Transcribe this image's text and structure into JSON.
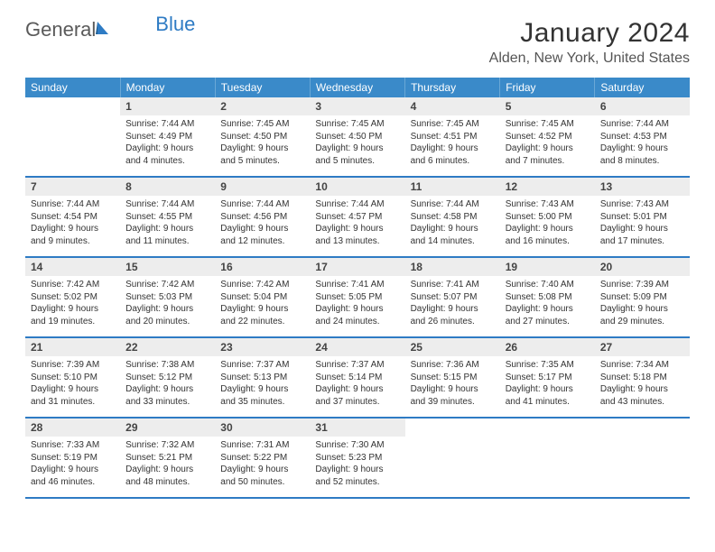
{
  "brand": {
    "text1": "General",
    "text2": "Blue"
  },
  "title": "January 2024",
  "location": "Alden, New York, United States",
  "colors": {
    "header_bg": "#3a8ac9",
    "week_divider": "#2e7bc4",
    "daynum_bg": "#ededed",
    "text": "#333333"
  },
  "dows": [
    "Sunday",
    "Monday",
    "Tuesday",
    "Wednesday",
    "Thursday",
    "Friday",
    "Saturday"
  ],
  "weeks": [
    [
      {
        "num": "",
        "l1": "",
        "l2": "",
        "l3": "",
        "l4": ""
      },
      {
        "num": "1",
        "l1": "Sunrise: 7:44 AM",
        "l2": "Sunset: 4:49 PM",
        "l3": "Daylight: 9 hours",
        "l4": "and 4 minutes."
      },
      {
        "num": "2",
        "l1": "Sunrise: 7:45 AM",
        "l2": "Sunset: 4:50 PM",
        "l3": "Daylight: 9 hours",
        "l4": "and 5 minutes."
      },
      {
        "num": "3",
        "l1": "Sunrise: 7:45 AM",
        "l2": "Sunset: 4:50 PM",
        "l3": "Daylight: 9 hours",
        "l4": "and 5 minutes."
      },
      {
        "num": "4",
        "l1": "Sunrise: 7:45 AM",
        "l2": "Sunset: 4:51 PM",
        "l3": "Daylight: 9 hours",
        "l4": "and 6 minutes."
      },
      {
        "num": "5",
        "l1": "Sunrise: 7:45 AM",
        "l2": "Sunset: 4:52 PM",
        "l3": "Daylight: 9 hours",
        "l4": "and 7 minutes."
      },
      {
        "num": "6",
        "l1": "Sunrise: 7:44 AM",
        "l2": "Sunset: 4:53 PM",
        "l3": "Daylight: 9 hours",
        "l4": "and 8 minutes."
      }
    ],
    [
      {
        "num": "7",
        "l1": "Sunrise: 7:44 AM",
        "l2": "Sunset: 4:54 PM",
        "l3": "Daylight: 9 hours",
        "l4": "and 9 minutes."
      },
      {
        "num": "8",
        "l1": "Sunrise: 7:44 AM",
        "l2": "Sunset: 4:55 PM",
        "l3": "Daylight: 9 hours",
        "l4": "and 11 minutes."
      },
      {
        "num": "9",
        "l1": "Sunrise: 7:44 AM",
        "l2": "Sunset: 4:56 PM",
        "l3": "Daylight: 9 hours",
        "l4": "and 12 minutes."
      },
      {
        "num": "10",
        "l1": "Sunrise: 7:44 AM",
        "l2": "Sunset: 4:57 PM",
        "l3": "Daylight: 9 hours",
        "l4": "and 13 minutes."
      },
      {
        "num": "11",
        "l1": "Sunrise: 7:44 AM",
        "l2": "Sunset: 4:58 PM",
        "l3": "Daylight: 9 hours",
        "l4": "and 14 minutes."
      },
      {
        "num": "12",
        "l1": "Sunrise: 7:43 AM",
        "l2": "Sunset: 5:00 PM",
        "l3": "Daylight: 9 hours",
        "l4": "and 16 minutes."
      },
      {
        "num": "13",
        "l1": "Sunrise: 7:43 AM",
        "l2": "Sunset: 5:01 PM",
        "l3": "Daylight: 9 hours",
        "l4": "and 17 minutes."
      }
    ],
    [
      {
        "num": "14",
        "l1": "Sunrise: 7:42 AM",
        "l2": "Sunset: 5:02 PM",
        "l3": "Daylight: 9 hours",
        "l4": "and 19 minutes."
      },
      {
        "num": "15",
        "l1": "Sunrise: 7:42 AM",
        "l2": "Sunset: 5:03 PM",
        "l3": "Daylight: 9 hours",
        "l4": "and 20 minutes."
      },
      {
        "num": "16",
        "l1": "Sunrise: 7:42 AM",
        "l2": "Sunset: 5:04 PM",
        "l3": "Daylight: 9 hours",
        "l4": "and 22 minutes."
      },
      {
        "num": "17",
        "l1": "Sunrise: 7:41 AM",
        "l2": "Sunset: 5:05 PM",
        "l3": "Daylight: 9 hours",
        "l4": "and 24 minutes."
      },
      {
        "num": "18",
        "l1": "Sunrise: 7:41 AM",
        "l2": "Sunset: 5:07 PM",
        "l3": "Daylight: 9 hours",
        "l4": "and 26 minutes."
      },
      {
        "num": "19",
        "l1": "Sunrise: 7:40 AM",
        "l2": "Sunset: 5:08 PM",
        "l3": "Daylight: 9 hours",
        "l4": "and 27 minutes."
      },
      {
        "num": "20",
        "l1": "Sunrise: 7:39 AM",
        "l2": "Sunset: 5:09 PM",
        "l3": "Daylight: 9 hours",
        "l4": "and 29 minutes."
      }
    ],
    [
      {
        "num": "21",
        "l1": "Sunrise: 7:39 AM",
        "l2": "Sunset: 5:10 PM",
        "l3": "Daylight: 9 hours",
        "l4": "and 31 minutes."
      },
      {
        "num": "22",
        "l1": "Sunrise: 7:38 AM",
        "l2": "Sunset: 5:12 PM",
        "l3": "Daylight: 9 hours",
        "l4": "and 33 minutes."
      },
      {
        "num": "23",
        "l1": "Sunrise: 7:37 AM",
        "l2": "Sunset: 5:13 PM",
        "l3": "Daylight: 9 hours",
        "l4": "and 35 minutes."
      },
      {
        "num": "24",
        "l1": "Sunrise: 7:37 AM",
        "l2": "Sunset: 5:14 PM",
        "l3": "Daylight: 9 hours",
        "l4": "and 37 minutes."
      },
      {
        "num": "25",
        "l1": "Sunrise: 7:36 AM",
        "l2": "Sunset: 5:15 PM",
        "l3": "Daylight: 9 hours",
        "l4": "and 39 minutes."
      },
      {
        "num": "26",
        "l1": "Sunrise: 7:35 AM",
        "l2": "Sunset: 5:17 PM",
        "l3": "Daylight: 9 hours",
        "l4": "and 41 minutes."
      },
      {
        "num": "27",
        "l1": "Sunrise: 7:34 AM",
        "l2": "Sunset: 5:18 PM",
        "l3": "Daylight: 9 hours",
        "l4": "and 43 minutes."
      }
    ],
    [
      {
        "num": "28",
        "l1": "Sunrise: 7:33 AM",
        "l2": "Sunset: 5:19 PM",
        "l3": "Daylight: 9 hours",
        "l4": "and 46 minutes."
      },
      {
        "num": "29",
        "l1": "Sunrise: 7:32 AM",
        "l2": "Sunset: 5:21 PM",
        "l3": "Daylight: 9 hours",
        "l4": "and 48 minutes."
      },
      {
        "num": "30",
        "l1": "Sunrise: 7:31 AM",
        "l2": "Sunset: 5:22 PM",
        "l3": "Daylight: 9 hours",
        "l4": "and 50 minutes."
      },
      {
        "num": "31",
        "l1": "Sunrise: 7:30 AM",
        "l2": "Sunset: 5:23 PM",
        "l3": "Daylight: 9 hours",
        "l4": "and 52 minutes."
      },
      {
        "num": "",
        "l1": "",
        "l2": "",
        "l3": "",
        "l4": ""
      },
      {
        "num": "",
        "l1": "",
        "l2": "",
        "l3": "",
        "l4": ""
      },
      {
        "num": "",
        "l1": "",
        "l2": "",
        "l3": "",
        "l4": ""
      }
    ]
  ]
}
